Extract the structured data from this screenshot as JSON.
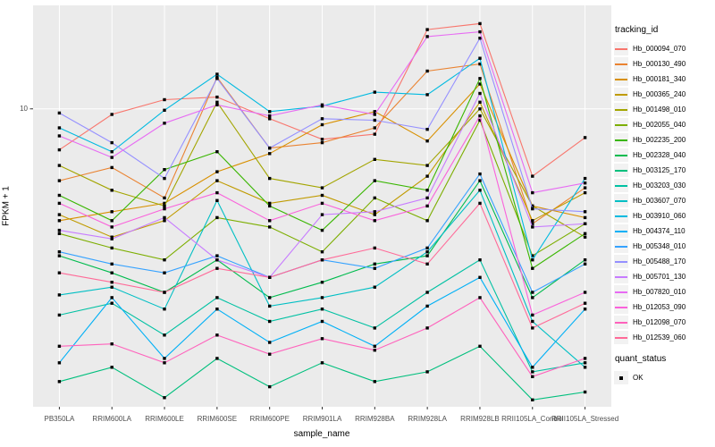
{
  "figure": {
    "background": "#ffffff",
    "panel_background": "#ebebeb",
    "grid_color": "#ffffff",
    "axis_text_color": "#4d4d4d"
  },
  "legend": {
    "tracking_title": "tracking_id",
    "quant_title": "quant_status",
    "quant_items": [
      {
        "label": "OK",
        "marker": "filled-square",
        "color": "#000000"
      }
    ]
  },
  "chart_data": {
    "type": "line",
    "title": "",
    "xlabel": "sample_name",
    "ylabel": "FPKM + 1",
    "y_scale": "log10",
    "y_tick": {
      "value": 10,
      "label": "10"
    },
    "y_domain_log10": [
      0.05,
      1.33
    ],
    "grid": "on",
    "legend_position": "right",
    "marker": {
      "shape": "square",
      "color": "#000000",
      "legend": "OK"
    },
    "x_categories": [
      "PB350LA",
      "RRIM600LA",
      "RRIM600LE",
      "RRIM600SE",
      "RRIM600PE",
      "RRIM901LA",
      "RRIM928BA",
      "RRIM928LA",
      "RRIM928LB",
      "RRII105LA_Control",
      "RRII105LA_Stressed"
    ],
    "series": [
      {
        "name": "Hb_000094_070",
        "color": "#F8766D",
        "values": [
          7.4,
          9.6,
          10.7,
          10.9,
          9.3,
          8.0,
          8.3,
          17.9,
          18.7,
          6.1,
          8.1
        ]
      },
      {
        "name": "Hb_000130_490",
        "color": "#EA8331",
        "values": [
          5.9,
          6.5,
          5.2,
          12.6,
          7.5,
          7.8,
          8.7,
          13.2,
          13.9,
          4.3,
          5.6
        ]
      },
      {
        "name": "Hb_000181_340",
        "color": "#D89000",
        "values": [
          4.4,
          4.7,
          5.0,
          6.3,
          7.2,
          8.9,
          9.8,
          7.9,
          12.0,
          4.9,
          4.5
        ]
      },
      {
        "name": "Hb_000365_240",
        "color": "#C09B00",
        "values": [
          4.6,
          3.9,
          4.4,
          5.9,
          5.0,
          5.3,
          4.6,
          6.1,
          10.5,
          4.4,
          5.4
        ]
      },
      {
        "name": "Hb_001498_010",
        "color": "#A3A500",
        "values": [
          6.6,
          5.5,
          4.9,
          10.5,
          6.0,
          5.6,
          6.9,
          6.6,
          10.0,
          4.9,
          3.9
        ]
      },
      {
        "name": "Hb_002055_040",
        "color": "#7CAE00",
        "values": [
          4.0,
          3.6,
          3.3,
          4.5,
          4.2,
          3.5,
          5.2,
          4.4,
          9.2,
          3.4,
          4.3
        ]
      },
      {
        "name": "Hb_002235_200",
        "color": "#39B600",
        "values": [
          5.3,
          4.4,
          6.4,
          7.3,
          4.9,
          4.1,
          5.9,
          5.5,
          12.5,
          3.1,
          4.0
        ]
      },
      {
        "name": "Hb_002328_040",
        "color": "#00BB4E",
        "values": [
          3.4,
          3.0,
          2.6,
          3.3,
          2.5,
          2.8,
          3.2,
          3.4,
          5.9,
          2.5,
          3.3
        ]
      },
      {
        "name": "Hb_003125_170",
        "color": "#00BF7D",
        "values": [
          1.35,
          1.5,
          1.2,
          1.6,
          1.3,
          1.55,
          1.35,
          1.45,
          1.75,
          1.18,
          1.25
        ]
      },
      {
        "name": "Hb_003203_030",
        "color": "#00C1A3",
        "values": [
          2.2,
          2.4,
          1.9,
          2.5,
          2.1,
          2.3,
          2.0,
          2.6,
          3.3,
          1.45,
          1.55
        ]
      },
      {
        "name": "Hb_003607_070",
        "color": "#00BFC4",
        "values": [
          2.55,
          2.7,
          2.3,
          5.1,
          2.35,
          2.5,
          2.7,
          3.5,
          5.5,
          2.1,
          1.5
        ]
      },
      {
        "name": "Hb_003910_060",
        "color": "#00BAE0",
        "values": [
          8.7,
          7.3,
          9.9,
          12.9,
          9.8,
          10.2,
          11.3,
          11.1,
          14.5,
          3.3,
          6.0
        ]
      },
      {
        "name": "Hb_004374_110",
        "color": "#00B0F6",
        "values": [
          1.55,
          2.5,
          1.6,
          2.3,
          1.8,
          2.1,
          1.75,
          2.35,
          2.9,
          1.5,
          2.3
        ]
      },
      {
        "name": "Hb_005348_010",
        "color": "#35A2FF",
        "values": [
          3.5,
          3.2,
          3.0,
          3.4,
          2.9,
          3.3,
          3.1,
          3.6,
          6.2,
          2.6,
          3.2
        ]
      },
      {
        "name": "Hb_005488_170",
        "color": "#9590FF",
        "values": [
          9.7,
          7.8,
          6.0,
          12.5,
          7.5,
          9.3,
          9.2,
          8.6,
          16.8,
          4.8,
          4.7
        ]
      },
      {
        "name": "Hb_005701_130",
        "color": "#C77CFF",
        "values": [
          4.1,
          3.85,
          4.5,
          3.3,
          2.9,
          4.6,
          4.7,
          5.2,
          11.2,
          4.2,
          4.3
        ]
      },
      {
        "name": "Hb_007820_010",
        "color": "#E76BF3",
        "values": [
          8.2,
          7.0,
          9.0,
          10.3,
          9.5,
          10.3,
          9.6,
          17.0,
          17.6,
          5.4,
          5.8
        ]
      },
      {
        "name": "Hb_012053_090",
        "color": "#FA62DB",
        "values": [
          5.0,
          4.2,
          4.8,
          5.4,
          4.4,
          5.0,
          4.4,
          4.9,
          9.5,
          2.2,
          2.6
        ]
      },
      {
        "name": "Hb_012098_070",
        "color": "#FF62BC",
        "values": [
          1.75,
          1.78,
          1.55,
          1.9,
          1.65,
          1.85,
          1.7,
          2.0,
          2.5,
          1.4,
          1.6
        ]
      },
      {
        "name": "Hb_012539_060",
        "color": "#FF6A98",
        "values": [
          3.0,
          2.8,
          2.6,
          3.1,
          2.9,
          3.3,
          3.6,
          3.2,
          5.0,
          2.0,
          2.4
        ]
      }
    ]
  }
}
